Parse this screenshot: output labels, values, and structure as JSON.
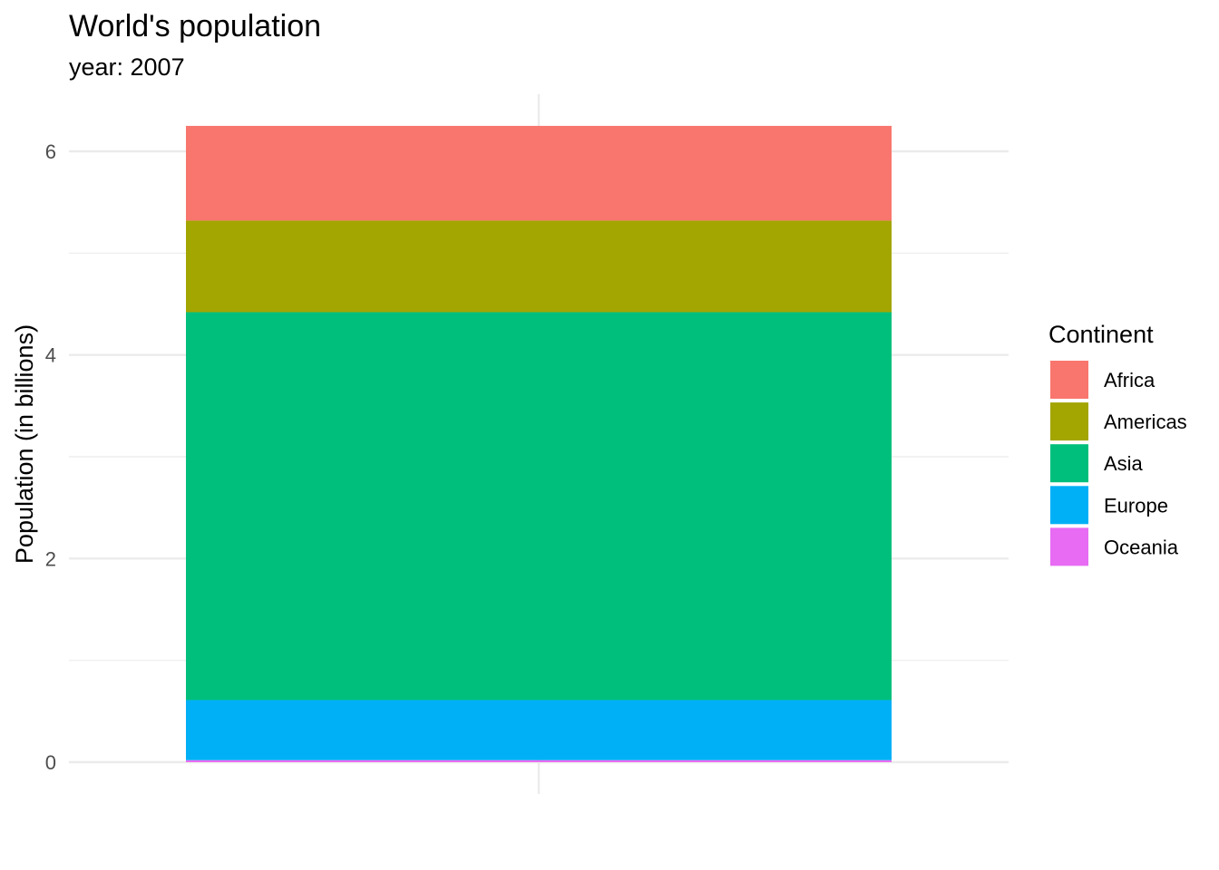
{
  "chart_data": {
    "type": "bar",
    "stacked": true,
    "title": "World's population",
    "subtitle": "year: 2007",
    "xlabel": "",
    "ylabel": "Population (in billions)",
    "ylim": [
      0,
      6.3
    ],
    "yticks": [
      0,
      2,
      4,
      6
    ],
    "grid": true,
    "legend": {
      "title": "Continent",
      "position": "right"
    },
    "categories": [
      ""
    ],
    "series": [
      {
        "name": "Africa",
        "values": [
          0.93
        ],
        "color": "#F8766D"
      },
      {
        "name": "Americas",
        "values": [
          0.9
        ],
        "color": "#A3A500"
      },
      {
        "name": "Asia",
        "values": [
          3.81
        ],
        "color": "#00BF7D"
      },
      {
        "name": "Europe",
        "values": [
          0.59
        ],
        "color": "#00B0F6"
      },
      {
        "name": "Oceania",
        "values": [
          0.02
        ],
        "color": "#E76BF3"
      }
    ]
  }
}
